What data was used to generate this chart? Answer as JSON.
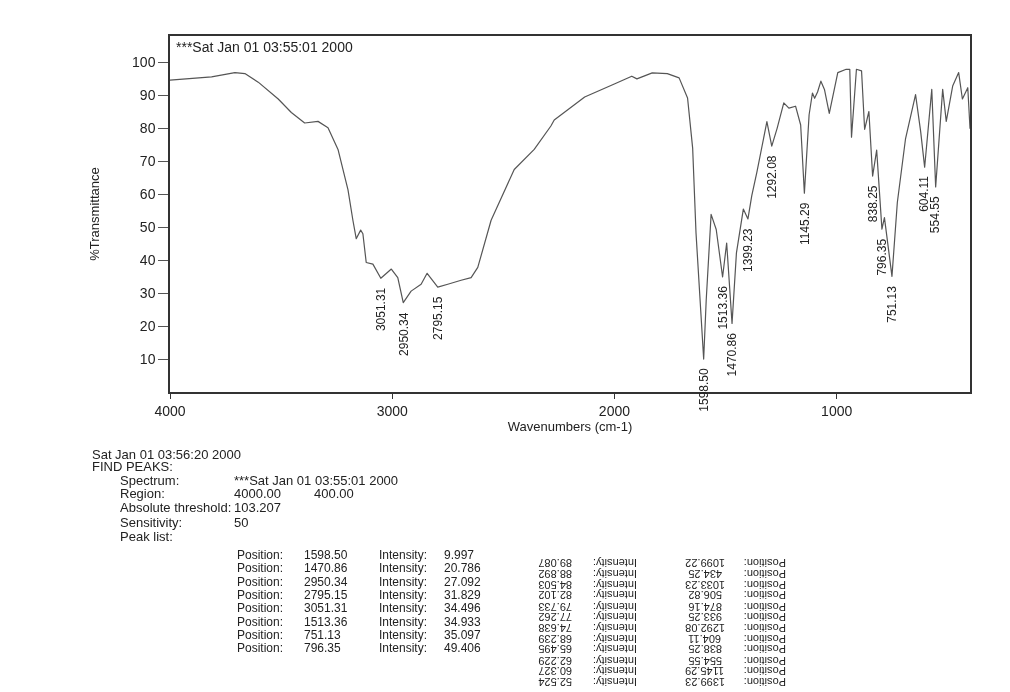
{
  "chart_data": {
    "type": "line",
    "title": "***Sat Jan 01 03:55:01 2000",
    "xlabel": "Wavenumbers (cm-1)",
    "ylabel": "%Transmittance",
    "x": [
      4000,
      3813,
      3708,
      3663,
      3603,
      3513,
      3454,
      3394,
      3334,
      3289,
      3244,
      3199,
      3177,
      3162,
      3142,
      3132,
      3117,
      3087,
      3051.31,
      3004,
      2975,
      2950.34,
      2915,
      2870,
      2843,
      2795.15,
      2750,
      2690,
      2645,
      2615,
      2555,
      2451,
      2361,
      2286,
      2271,
      2134,
      1998,
      1922,
      1899,
      1830,
      1762,
      1709,
      1671,
      1648,
      1633,
      1598.5,
      1587,
      1565,
      1542,
      1513.36,
      1495,
      1470.86,
      1451,
      1420,
      1399.23,
      1382,
      1359,
      1314,
      1292.08,
      1268,
      1238,
      1215,
      1185,
      1162,
      1145.29,
      1124,
      1109,
      1099.22,
      1086,
      1071,
      1055,
      1033.23,
      995,
      957,
      941,
      933.25,
      911,
      888,
      874.16,
      855,
      838.25,
      820,
      796.35,
      785,
      751.13,
      727,
      690,
      645,
      622,
      604.11,
      572,
      554.55,
      523,
      506.82,
      478,
      451,
      434.25,
      410,
      400
    ],
    "series": [
      {
        "color": "#555555",
        "values": [
          94.6,
          95.6,
          96.9,
          96.6,
          94.0,
          88.9,
          84.8,
          81.6,
          82.1,
          80.2,
          73.6,
          61.3,
          52.1,
          46.5,
          49.1,
          48.0,
          39.3,
          38.8,
          34.5,
          37.3,
          34.7,
          27.1,
          30.6,
          32.7,
          36.0,
          31.8,
          32.7,
          33.9,
          34.7,
          37.8,
          52.1,
          67.5,
          73.6,
          80.7,
          82.5,
          89.5,
          93.5,
          95.8,
          95.0,
          96.8,
          96.6,
          95.3,
          89.2,
          73.9,
          48.3,
          10.0,
          27.9,
          53.9,
          49.3,
          34.9,
          45.2,
          20.8,
          42.2,
          55.5,
          52.5,
          59.6,
          66.7,
          82.0,
          74.6,
          80.0,
          87.7,
          86.1,
          86.7,
          81.0,
          60.3,
          84.1,
          90.7,
          89.1,
          91.0,
          94.3,
          91.8,
          84.5,
          96.9,
          97.9,
          97.9,
          77.3,
          97.9,
          97.4,
          79.7,
          85.1,
          65.5,
          73.4,
          49.4,
          52.9,
          35.1,
          57.5,
          76.9,
          90.2,
          79.0,
          68.2,
          91.8,
          62.2,
          91.8,
          82.1,
          92.8,
          96.9,
          88.9,
          92.3,
          80.0
        ]
      }
    ],
    "xlim": [
      4000,
      400
    ],
    "xticks": [
      4000,
      3000,
      2000,
      1000
    ],
    "ylim": [
      0,
      108
    ],
    "yticks": [
      10,
      20,
      30,
      40,
      50,
      60,
      70,
      80,
      90,
      100
    ],
    "legend": false,
    "marker": "none",
    "line_style": "solid",
    "annotations": [
      {
        "text": "3051.31",
        "x": 3051.31,
        "y": 34.5
      },
      {
        "text": "2950.34",
        "x": 2950.34,
        "y": 27.1
      },
      {
        "text": "2795.15",
        "x": 2795.15,
        "y": 31.8
      },
      {
        "text": "1598.50",
        "x": 1598.5,
        "y": 10.0
      },
      {
        "text": "1513.36",
        "x": 1513.36,
        "y": 34.9
      },
      {
        "text": "1470.86",
        "x": 1470.86,
        "y": 20.8
      },
      {
        "text": "1399.23",
        "x": 1399.23,
        "y": 52.5
      },
      {
        "text": "1292.08",
        "x": 1292.08,
        "y": 74.6
      },
      {
        "text": "1145.29",
        "x": 1145.29,
        "y": 60.3
      },
      {
        "text": "838.25",
        "x": 838.25,
        "y": 65.5
      },
      {
        "text": "796.35",
        "x": 796.35,
        "y": 49.4
      },
      {
        "text": "751.13",
        "x": 751.13,
        "y": 35.1
      },
      {
        "text": "604.11",
        "x": 604.11,
        "y": 68.2
      },
      {
        "text": "554.55",
        "x": 554.55,
        "y": 62.2
      },
      "Sat Jan 01 03:56:20 2000",
      "FIND PEAKS:",
      "Spectrum:",
      "Region:",
      "Absolute threshold:",
      "Sensitivity:",
      "Peak list:",
      "***Sat Jan 01 03:55:01 2000",
      "4000.00",
      "400.00",
      "103.207",
      "50",
      "Position:",
      "1598.50",
      "Intensity:",
      "9.997",
      "Position:",
      "1470.86",
      "Intensity:",
      "20.786",
      "Position:",
      "2950.34",
      "Intensity:",
      "27.092",
      "Position:",
      "2795.15",
      "Intensity:",
      "31.829",
      "Position:",
      "3051.31",
      "Intensity:",
      "34.496",
      "Position:",
      "1513.36",
      "Intensity:",
      "34.933",
      "Position:",
      "751.13",
      "Intensity:",
      "35.097",
      "Position:",
      "796.35",
      "Intensity:",
      "49.406",
      "Position:",
      "1399.23",
      "Intensity:",
      "52.524",
      "Position:",
      "1145.29",
      "Intensity:",
      "60.327",
      "Position:",
      "554.55",
      "Intensity:",
      "62.229",
      "Position:",
      "838.25",
      "Intensity:",
      "65.495",
      "Position:",
      "604.11",
      "Intensity:",
      "68.239",
      "Position:",
      "1292.08",
      "Intensity:",
      "74.638",
      "Position:",
      "933.25",
      "Intensity:",
      "77.262",
      "Position:",
      "874.16",
      "Intensity:",
      "79.733",
      "Position:",
      "506.82",
      "Intensity:",
      "82.102",
      "Position:",
      "1033.23",
      "Intensity:",
      "84.503",
      "Position:",
      "434.25",
      "Intensity:",
      "88.892",
      "Position:",
      "1099.22",
      "Intensity:",
      "89.087"
    ]
  }
}
